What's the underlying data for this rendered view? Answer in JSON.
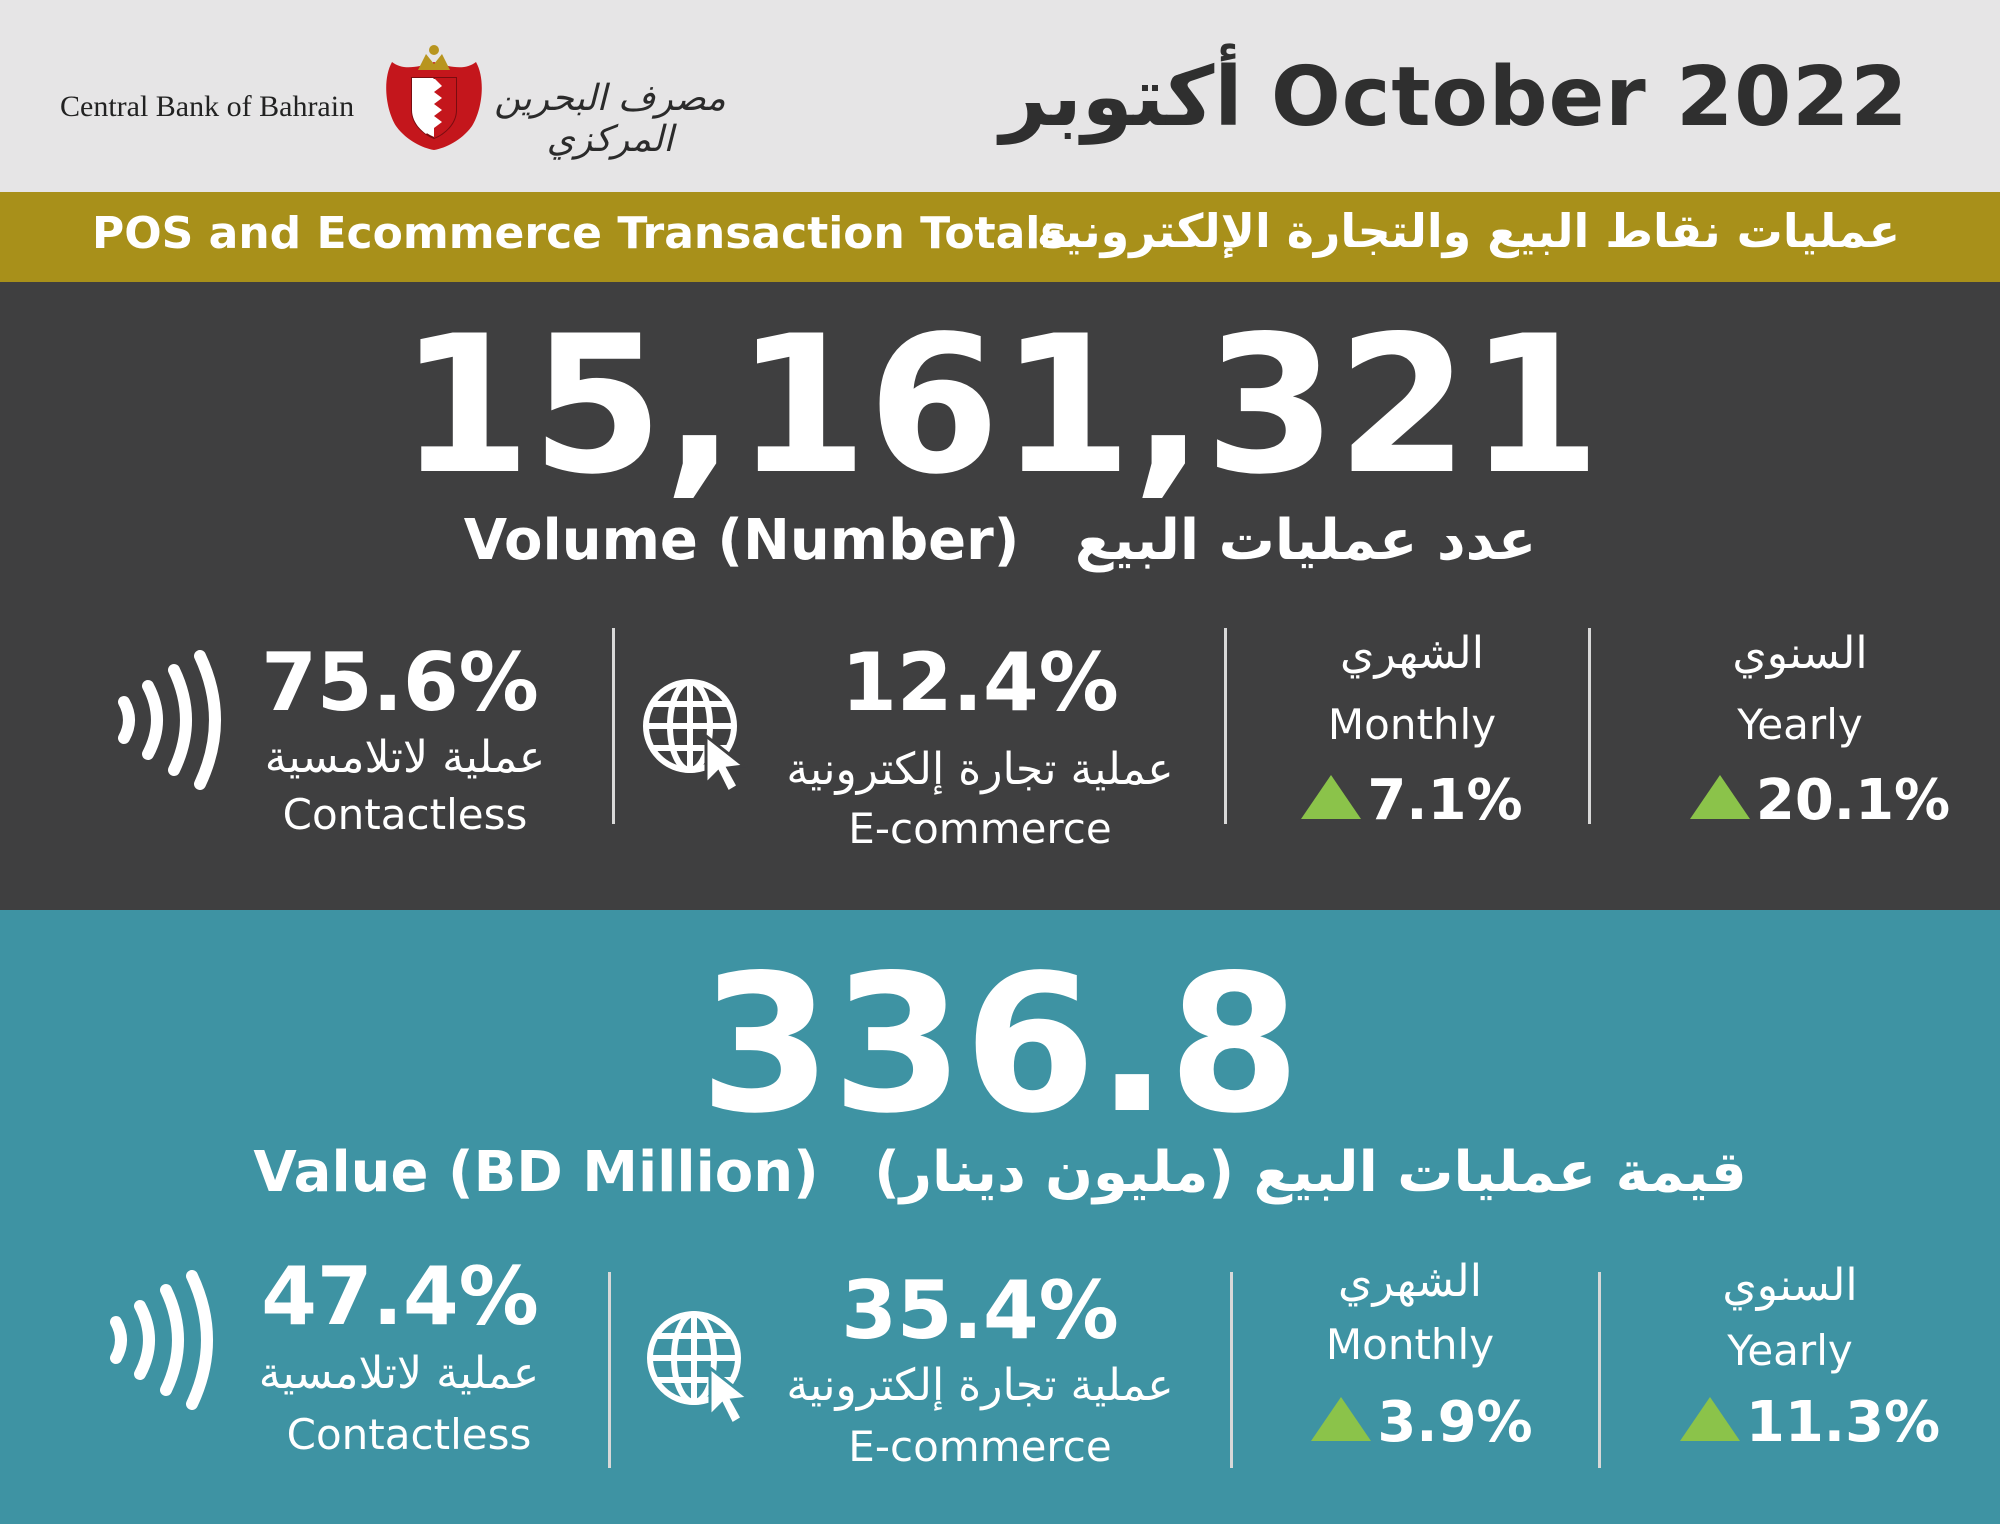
{
  "header": {
    "bank_name_en": "Central Bank of Bahrain",
    "bank_name_ar": "مصرف البحرين المركزي",
    "title": "أكتوبر October 2022"
  },
  "band": {
    "title_en": "POS and Ecommerce Transaction Totals",
    "title_ar": "عمليات نقاط البيع والتجارة الإلكترونية"
  },
  "volume": {
    "total": "15,161,321",
    "label_en": "Volume (Number)",
    "label_ar": "عدد عمليات البيع",
    "contactless_pct": "75.6%",
    "contactless_ar": "عملية لاتلامسية",
    "contactless_en": "Contactless",
    "ecommerce_pct": "12.4%",
    "ecommerce_ar": "عملية تجارة إلكترونية",
    "ecommerce_en": "E-commerce",
    "monthly_ar": "الشهري",
    "monthly_en": "Monthly",
    "monthly_change": "7.1%",
    "yearly_ar": "السنوي",
    "yearly_en": "Yearly",
    "yearly_change": "20.1%"
  },
  "value": {
    "total": "336.8",
    "label_en": "Value (BD Million)",
    "label_ar": "قيمة عمليات البيع (مليون دينار)",
    "contactless_pct": "47.4%",
    "contactless_ar": "عملية لاتلامسية",
    "contactless_en": "Contactless",
    "ecommerce_pct": "35.4%",
    "ecommerce_ar": "عملية تجارة إلكترونية",
    "ecommerce_en": "E-commerce",
    "monthly_ar": "الشهري",
    "monthly_en": "Monthly",
    "monthly_change": "3.9%",
    "yearly_ar": "السنوي",
    "yearly_en": "Yearly",
    "yearly_change": "11.3%"
  },
  "colors": {
    "header_bg": "#e6e5e6",
    "band_bg": "#a8901a",
    "dark_bg": "#3f3f40",
    "teal_bg": "#3e93a3",
    "up_arrow": "#8bc34a"
  },
  "icons": [
    "bahrain-crest-icon",
    "contactless-icon",
    "globe-cursor-icon",
    "up-triangle-icon"
  ]
}
